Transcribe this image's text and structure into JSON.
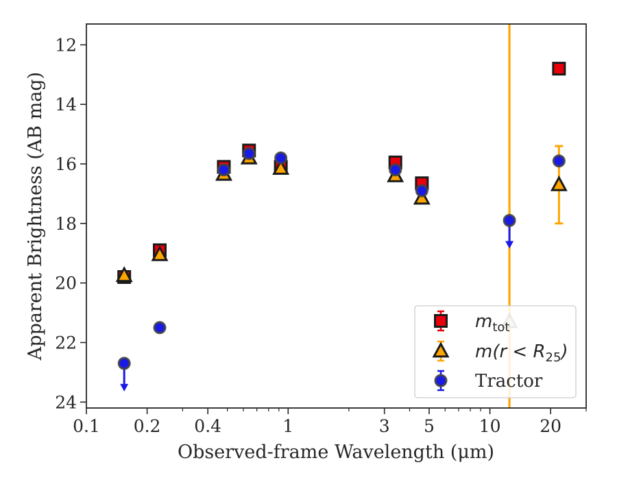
{
  "chart_data": {
    "type": "scatter",
    "xlabel": "Observed-frame Wavelength (μm)",
    "ylabel": "Apparent Brightness (AB mag)",
    "xscale": "log",
    "xlim": [
      0.1,
      30
    ],
    "ylim": [
      24.2,
      11.3
    ],
    "y_inverted": true,
    "x_ticks": [
      0.1,
      0.2,
      0.4,
      1,
      3,
      5,
      10,
      20
    ],
    "x_tick_labels": [
      "0.1",
      "0.2",
      "0.4",
      "1",
      "3",
      "5",
      "10",
      "20"
    ],
    "y_ticks": [
      12,
      14,
      16,
      18,
      20,
      22,
      24
    ],
    "y_tick_labels": [
      "12",
      "14",
      "16",
      "18",
      "20",
      "22",
      "24"
    ],
    "grid": false,
    "legend_position": "lower-right",
    "vline": {
      "x": 12.5,
      "color": "#FFA500"
    },
    "series": [
      {
        "name": "m_tot",
        "legend_main": "m",
        "legend_sub": "tot",
        "marker": "square",
        "color": "#E8000B",
        "points": [
          {
            "x": 0.154,
            "y": 19.8
          },
          {
            "x": 0.231,
            "y": 18.9
          },
          {
            "x": 0.48,
            "y": 16.1
          },
          {
            "x": 0.64,
            "y": 15.55
          },
          {
            "x": 0.92,
            "y": 16.1
          },
          {
            "x": 3.4,
            "y": 15.95
          },
          {
            "x": 4.6,
            "y": 16.65
          },
          {
            "x": 22.0,
            "y": 12.8
          }
        ]
      },
      {
        "name": "m(r < R_25)",
        "legend_main": "m(r < R",
        "legend_sub": "25",
        "legend_end": ")",
        "marker": "triangle",
        "color": "#FFA500",
        "points": [
          {
            "x": 0.154,
            "y": 19.75
          },
          {
            "x": 0.231,
            "y": 19.05
          },
          {
            "x": 0.48,
            "y": 16.35
          },
          {
            "x": 0.64,
            "y": 15.8
          },
          {
            "x": 0.92,
            "y": 16.15
          },
          {
            "x": 3.4,
            "y": 16.4
          },
          {
            "x": 4.6,
            "y": 17.15
          },
          {
            "x": 12.5,
            "y": 21.3,
            "faded": true
          },
          {
            "x": 22.0,
            "y": 16.7,
            "yerr_low": 15.4,
            "yerr_high": 18.0
          }
        ]
      },
      {
        "name": "Tractor",
        "marker": "circle",
        "color": "#1A1AE6",
        "points": [
          {
            "x": 0.154,
            "y": 22.7,
            "upper_limit": true
          },
          {
            "x": 0.231,
            "y": 21.5
          },
          {
            "x": 0.48,
            "y": 16.2
          },
          {
            "x": 0.64,
            "y": 15.65
          },
          {
            "x": 0.92,
            "y": 15.8
          },
          {
            "x": 3.4,
            "y": 16.2
          },
          {
            "x": 4.6,
            "y": 16.9
          },
          {
            "x": 12.5,
            "y": 17.9,
            "upper_limit": true
          },
          {
            "x": 22.0,
            "y": 15.9
          }
        ]
      }
    ]
  }
}
